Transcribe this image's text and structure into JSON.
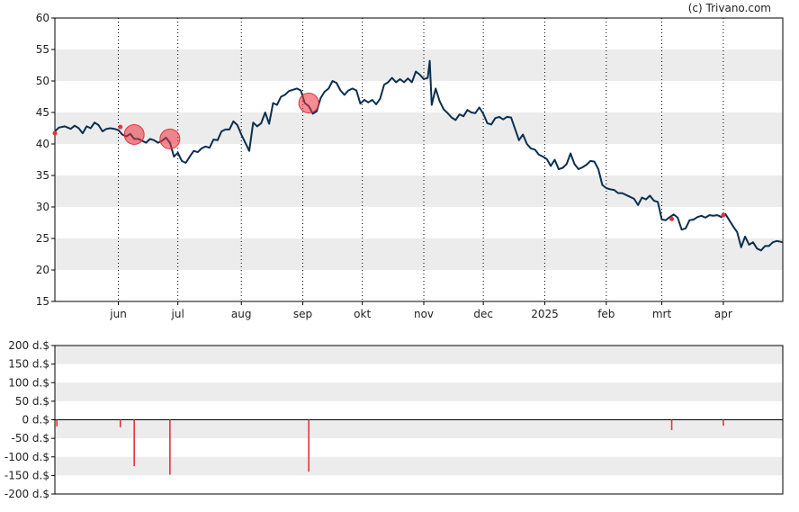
{
  "copyright": "(c) Trivano.com",
  "colors": {
    "line": "#0b2f4f",
    "marker": "#e8323c",
    "marker_fill": "rgba(232,50,60,0.55)",
    "band": "#ececec",
    "grid": "#000000",
    "axis": "#000000"
  },
  "chart_data": [
    {
      "type": "line",
      "name": "price",
      "ylim": [
        15,
        60
      ],
      "yticks": [
        "15",
        "20",
        "25",
        "30",
        "35",
        "40",
        "45",
        "50",
        "55",
        "60"
      ],
      "grid": "vertical dotted month lines, alternating horizontal bands",
      "months": [
        {
          "label": "jun",
          "t": 32
        },
        {
          "label": "jul",
          "t": 62
        },
        {
          "label": "aug",
          "t": 94
        },
        {
          "label": "sep",
          "t": 125
        },
        {
          "label": "okt",
          "t": 155
        },
        {
          "label": "nov",
          "t": 186
        },
        {
          "label": "dec",
          "t": 216
        },
        {
          "label": "2025",
          "t": 247
        },
        {
          "label": "feb",
          "t": 278
        },
        {
          "label": "mrt",
          "t": 306
        },
        {
          "label": "apr",
          "t": 337
        }
      ],
      "t_range": [
        0,
        367
      ],
      "series": [
        {
          "points": [
            [
              0,
              42.0
            ],
            [
              2,
              42.6
            ],
            [
              5,
              42.8
            ],
            [
              8,
              42.4
            ],
            [
              10,
              42.9
            ],
            [
              12,
              42.5
            ],
            [
              14,
              41.7
            ],
            [
              16,
              42.8
            ],
            [
              18,
              42.5
            ],
            [
              20,
              43.4
            ],
            [
              22,
              43.0
            ],
            [
              24,
              42.0
            ],
            [
              26,
              42.4
            ],
            [
              28,
              42.5
            ],
            [
              30,
              42.4
            ],
            [
              32,
              42.2
            ],
            [
              34,
              41.5
            ],
            [
              36,
              41.2
            ],
            [
              38,
              41.6
            ],
            [
              40,
              40.8
            ],
            [
              42,
              40.8
            ],
            [
              44,
              40.5
            ],
            [
              46,
              40.2
            ],
            [
              48,
              40.8
            ],
            [
              50,
              40.6
            ],
            [
              52,
              40.2
            ],
            [
              54,
              40.5
            ],
            [
              56,
              41.0
            ],
            [
              58,
              40.2
            ],
            [
              60,
              38.0
            ],
            [
              62,
              38.6
            ],
            [
              64,
              37.3
            ],
            [
              66,
              37.0
            ],
            [
              68,
              38.0
            ],
            [
              70,
              38.9
            ],
            [
              72,
              38.7
            ],
            [
              74,
              39.3
            ],
            [
              76,
              39.6
            ],
            [
              78,
              39.4
            ],
            [
              80,
              40.7
            ],
            [
              82,
              40.6
            ],
            [
              84,
              42.0
            ],
            [
              86,
              42.3
            ],
            [
              88,
              42.3
            ],
            [
              90,
              43.6
            ],
            [
              92,
              43.0
            ],
            [
              94,
              41.5
            ],
            [
              96,
              40.2
            ],
            [
              98,
              38.9
            ],
            [
              100,
              43.4
            ],
            [
              102,
              42.8
            ],
            [
              104,
              43.3
            ],
            [
              106,
              45.0
            ],
            [
              108,
              43.2
            ],
            [
              110,
              46.5
            ],
            [
              112,
              46.2
            ],
            [
              114,
              47.5
            ],
            [
              116,
              47.8
            ],
            [
              118,
              48.4
            ],
            [
              120,
              48.6
            ],
            [
              122,
              48.8
            ],
            [
              124,
              48.5
            ],
            [
              126,
              46.5
            ],
            [
              128,
              46.0
            ],
            [
              130,
              44.8
            ],
            [
              132,
              45.2
            ],
            [
              134,
              47.3
            ],
            [
              136,
              48.3
            ],
            [
              138,
              48.8
            ],
            [
              140,
              50.0
            ],
            [
              142,
              49.7
            ],
            [
              144,
              48.5
            ],
            [
              146,
              47.8
            ],
            [
              148,
              48.5
            ],
            [
              150,
              48.8
            ],
            [
              152,
              48.5
            ],
            [
              154,
              46.4
            ],
            [
              156,
              47.0
            ],
            [
              158,
              46.6
            ],
            [
              160,
              47.0
            ],
            [
              162,
              46.3
            ],
            [
              164,
              47.2
            ],
            [
              166,
              49.4
            ],
            [
              168,
              49.8
            ],
            [
              170,
              50.5
            ],
            [
              172,
              49.8
            ],
            [
              174,
              50.3
            ],
            [
              176,
              49.8
            ],
            [
              178,
              50.4
            ],
            [
              180,
              49.8
            ],
            [
              182,
              51.5
            ],
            [
              184,
              51.0
            ],
            [
              186,
              50.3
            ],
            [
              188,
              50.5
            ],
            [
              189,
              53.2
            ],
            [
              190,
              46.2
            ],
            [
              192,
              48.8
            ],
            [
              194,
              46.8
            ],
            [
              196,
              45.5
            ],
            [
              198,
              44.9
            ],
            [
              200,
              44.2
            ],
            [
              202,
              43.8
            ],
            [
              204,
              44.7
            ],
            [
              206,
              44.4
            ],
            [
              208,
              45.4
            ],
            [
              210,
              45.0
            ],
            [
              212,
              44.9
            ],
            [
              214,
              45.8
            ],
            [
              216,
              44.8
            ],
            [
              218,
              43.3
            ],
            [
              220,
              43.1
            ],
            [
              222,
              44.1
            ],
            [
              224,
              44.3
            ],
            [
              226,
              43.9
            ],
            [
              228,
              44.3
            ],
            [
              230,
              44.2
            ],
            [
              232,
              42.4
            ],
            [
              234,
              40.6
            ],
            [
              236,
              41.5
            ],
            [
              238,
              40.0
            ],
            [
              240,
              39.3
            ],
            [
              242,
              39.1
            ],
            [
              244,
              38.3
            ],
            [
              246,
              38.0
            ],
            [
              248,
              37.6
            ],
            [
              250,
              36.5
            ],
            [
              252,
              37.5
            ],
            [
              254,
              36.0
            ],
            [
              256,
              36.2
            ],
            [
              258,
              36.8
            ],
            [
              260,
              38.5
            ],
            [
              262,
              36.8
            ],
            [
              264,
              36.0
            ],
            [
              266,
              36.3
            ],
            [
              268,
              36.7
            ],
            [
              270,
              37.3
            ],
            [
              272,
              37.2
            ],
            [
              274,
              36.0
            ],
            [
              276,
              33.5
            ],
            [
              278,
              33.0
            ],
            [
              280,
              32.8
            ],
            [
              282,
              32.7
            ],
            [
              284,
              32.2
            ],
            [
              286,
              32.2
            ],
            [
              288,
              31.9
            ],
            [
              290,
              31.6
            ],
            [
              292,
              31.3
            ],
            [
              294,
              30.3
            ],
            [
              296,
              31.5
            ],
            [
              298,
              31.2
            ],
            [
              300,
              31.8
            ],
            [
              302,
              31.0
            ],
            [
              304,
              30.8
            ],
            [
              306,
              28.0
            ],
            [
              308,
              27.9
            ],
            [
              310,
              28.4
            ],
            [
              312,
              28.8
            ],
            [
              314,
              28.3
            ],
            [
              316,
              26.4
            ],
            [
              318,
              26.6
            ],
            [
              320,
              27.9
            ],
            [
              322,
              28.0
            ],
            [
              324,
              28.4
            ],
            [
              326,
              28.6
            ],
            [
              328,
              28.3
            ],
            [
              330,
              28.7
            ],
            [
              332,
              28.6
            ],
            [
              334,
              28.7
            ],
            [
              336,
              28.4
            ],
            [
              338,
              28.9
            ],
            [
              340,
              27.9
            ],
            [
              342,
              26.9
            ],
            [
              344,
              26.0
            ],
            [
              346,
              23.6
            ],
            [
              348,
              25.3
            ],
            [
              350,
              24.0
            ],
            [
              352,
              24.4
            ],
            [
              354,
              23.4
            ],
            [
              356,
              23.1
            ],
            [
              358,
              23.8
            ],
            [
              360,
              23.8
            ],
            [
              362,
              24.4
            ],
            [
              364,
              24.6
            ],
            [
              367,
              24.4
            ]
          ]
        }
      ],
      "markers": [
        {
          "t": 0,
          "y": 41.7,
          "size": "small"
        },
        {
          "t": 33,
          "y": 42.7,
          "size": "small"
        },
        {
          "t": 40,
          "y": 41.5,
          "size": "large"
        },
        {
          "t": 58,
          "y": 40.8,
          "size": "large"
        },
        {
          "t": 128,
          "y": 46.5,
          "size": "large"
        },
        {
          "t": 311,
          "y": 28.1,
          "size": "small"
        },
        {
          "t": 337,
          "y": 28.7,
          "size": "small"
        }
      ]
    },
    {
      "type": "bar",
      "name": "transactions",
      "ylim": [
        -200,
        200
      ],
      "yticks": [
        "-200 d.$",
        "-150 d.$",
        "-100 d.$",
        "-50 d.$",
        "0 d.$",
        "50 d.$",
        "100 d.$",
        "150 d.$",
        "200 d.$"
      ],
      "bars": [
        {
          "t": 1,
          "value": -18
        },
        {
          "t": 33,
          "value": -20
        },
        {
          "t": 40,
          "value": -125
        },
        {
          "t": 58,
          "value": -148
        },
        {
          "t": 128,
          "value": -140
        },
        {
          "t": 311,
          "value": -28
        },
        {
          "t": 337,
          "value": -16
        }
      ]
    }
  ]
}
